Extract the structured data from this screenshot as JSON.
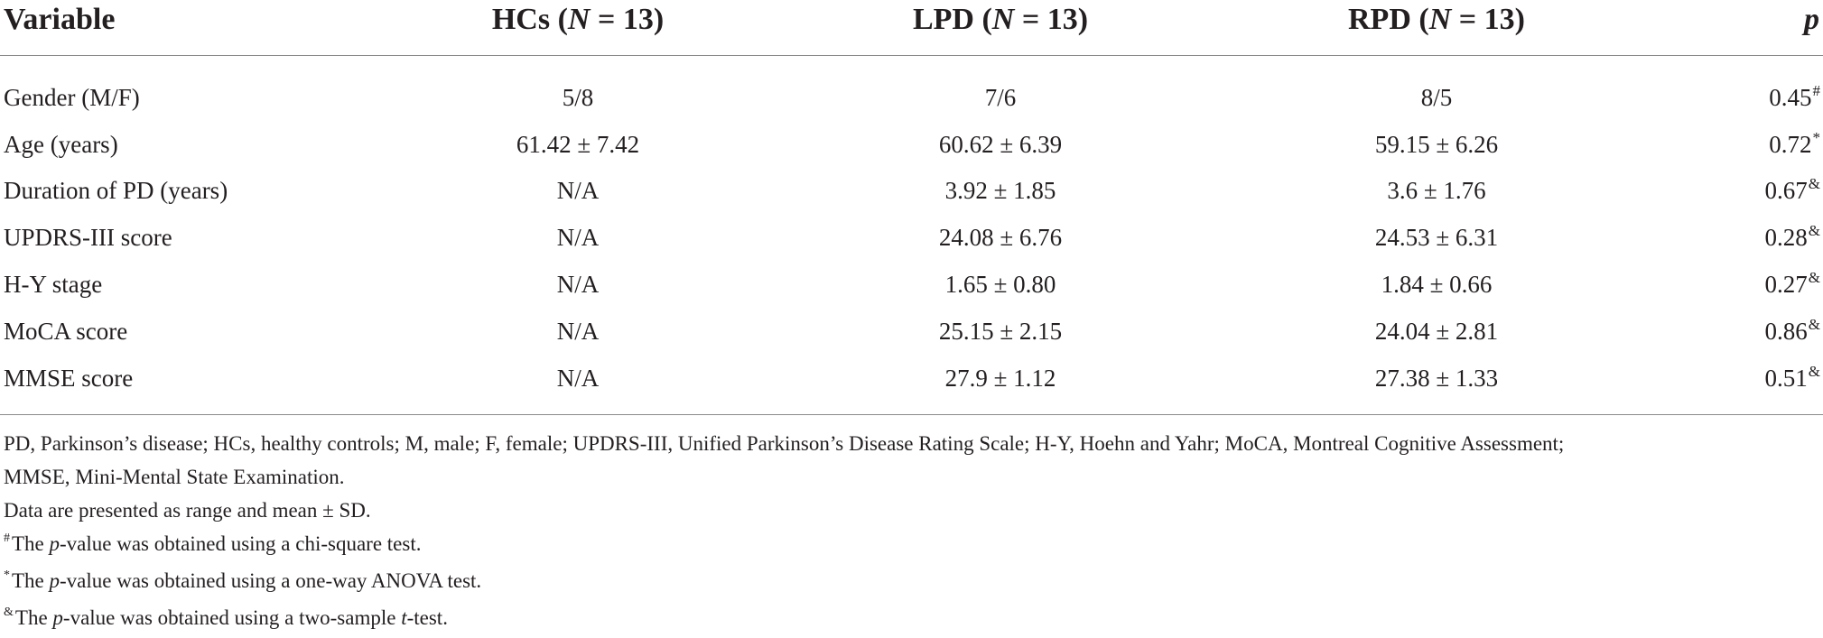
{
  "table": {
    "header": {
      "variable": "Variable",
      "hc": {
        "name": "HCs",
        "n_label": "N",
        "n_rest": " = 13"
      },
      "lpd": {
        "name": "LPD",
        "n_label": "N",
        "n_rest": " = 13"
      },
      "rpd": {
        "name": "RPD",
        "n_label": "N",
        "n_rest": " = 13"
      },
      "p": "p"
    },
    "rows": [
      {
        "variable": "Gender (M/F)",
        "hc": "5/8",
        "lpd": "7/6",
        "rpd": "8/5",
        "p": "0.45",
        "p_mark": "#"
      },
      {
        "variable": "Age (years)",
        "hc": "61.42 ± 7.42",
        "lpd": "60.62 ± 6.39",
        "rpd": "59.15 ± 6.26",
        "p": "0.72",
        "p_mark": "*"
      },
      {
        "variable": "Duration of PD (years)",
        "hc": "N/A",
        "lpd": "3.92 ± 1.85",
        "rpd": "3.6 ± 1.76",
        "p": "0.67",
        "p_mark": "&"
      },
      {
        "variable": "UPDRS-III score",
        "hc": "N/A",
        "lpd": "24.08 ± 6.76",
        "rpd": "24.53 ± 6.31",
        "p": "0.28",
        "p_mark": "&"
      },
      {
        "variable": "H-Y stage",
        "hc": "N/A",
        "lpd": "1.65 ± 0.80",
        "rpd": "1.84 ± 0.66",
        "p": "0.27",
        "p_mark": "&"
      },
      {
        "variable": "MoCA score",
        "hc": "N/A",
        "lpd": "25.15 ± 2.15",
        "rpd": "24.04 ± 2.81",
        "p": "0.86",
        "p_mark": "&"
      },
      {
        "variable": "MMSE score",
        "hc": "N/A",
        "lpd": "27.9 ± 1.12",
        "rpd": "27.38 ± 1.33",
        "p": "0.51",
        "p_mark": "&"
      }
    ]
  },
  "footnotes": {
    "abbrev_line1": "PD, Parkinson’s disease; HCs, healthy controls; M, male; F, female; UPDRS-III, Unified Parkinson’s Disease Rating Scale; H-Y, Hoehn and Yahr; MoCA, Montreal Cognitive Assessment;",
    "abbrev_line2": "MMSE, Mini-Mental State Examination.",
    "data_note": "Data are presented as range and mean ± SD.",
    "chi": {
      "mark": "#",
      "pre": "The ",
      "italic": "p",
      "post": "-value was obtained using a chi-square test."
    },
    "anova": {
      "mark": "*",
      "pre": "The ",
      "italic": "p",
      "post": "-value was obtained using a one-way ANOVA test."
    },
    "ttest": {
      "mark": "&",
      "pre": "The ",
      "italic": "p",
      "post": "-value was obtained using a two-sample ",
      "italic2": "t",
      "post2": "-test."
    }
  }
}
